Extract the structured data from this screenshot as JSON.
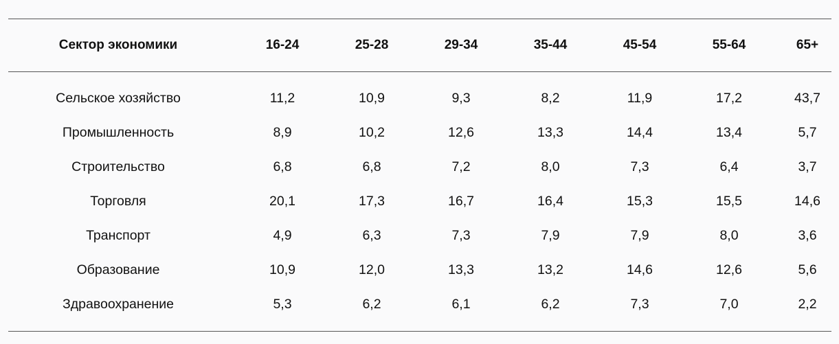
{
  "table": {
    "headers": [
      "Сектор экономики",
      "16-24",
      "25-28",
      "29-34",
      "35-44",
      "45-54",
      "55-64",
      "65+"
    ],
    "rows": [
      [
        "Сельское хозяйство",
        "11,2",
        "10,9",
        "9,3",
        "8,2",
        "11,9",
        "17,2",
        "43,7"
      ],
      [
        "Промышленность",
        "8,9",
        "10,2",
        "12,6",
        "13,3",
        "14,4",
        "13,4",
        "5,7"
      ],
      [
        "Строительство",
        "6,8",
        "6,8",
        "7,2",
        "8,0",
        "7,3",
        "6,4",
        "3,7"
      ],
      [
        "Торговля",
        "20,1",
        "17,3",
        "16,7",
        "16,4",
        "15,3",
        "15,5",
        "14,6"
      ],
      [
        "Транспорт",
        "4,9",
        "6,3",
        "7,3",
        "7,9",
        "7,9",
        "8,0",
        "3,6"
      ],
      [
        "Образование",
        "10,9",
        "12,0",
        "13,3",
        "13,2",
        "14,6",
        "12,6",
        "5,6"
      ],
      [
        "Здравоохранение",
        "5,3",
        "6,2",
        "6,1",
        "6,2",
        "7,3",
        "7,0",
        "2,2"
      ]
    ]
  }
}
